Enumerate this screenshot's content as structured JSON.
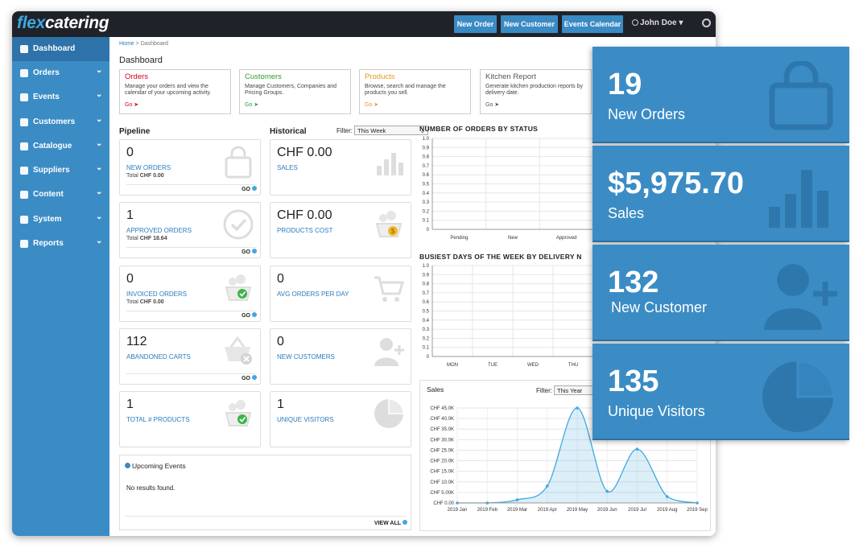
{
  "app": {
    "logo_prefix": "flex",
    "logo_suffix": "catering",
    "user": "John Doe ▾"
  },
  "topbar": {
    "buttons": [
      "New Order",
      "New Customer",
      "Events Calendar"
    ]
  },
  "sidebar": {
    "items": [
      {
        "label": "Dashboard",
        "icon": "bar-chart-icon"
      },
      {
        "label": "Orders",
        "icon": "edit-icon"
      },
      {
        "label": "Events",
        "icon": "calendar-icon"
      },
      {
        "label": "Customers",
        "icon": "users-icon"
      },
      {
        "label": "Catalogue",
        "icon": "book-icon"
      },
      {
        "label": "Suppliers",
        "icon": "truck-icon"
      },
      {
        "label": "Content",
        "icon": "pencil-icon"
      },
      {
        "label": "System",
        "icon": "gear-icon"
      },
      {
        "label": "Reports",
        "icon": "bar-chart-icon"
      }
    ]
  },
  "breadcrumb": {
    "home": "Home",
    "sep": ">",
    "current": "Dashboard"
  },
  "page_title": "Dashboard",
  "quick_cards": [
    {
      "title": "Orders",
      "text": "Manage your orders and view the calendar of your upcoming activity.",
      "go": "Go",
      "color": "#d0021b"
    },
    {
      "title": "Customers",
      "text": "Manage Customers, Companies and Pricing Groups.",
      "go": "Go",
      "color": "#2e9c2e"
    },
    {
      "title": "Products",
      "text": "Browse, search and manage the products you sell.",
      "go": "Go",
      "color": "#e09a1a"
    },
    {
      "title": "Kitchen Report",
      "text": "Generate kitchen production reports by delivery date.",
      "go": "Go",
      "color": "#555555"
    }
  ],
  "pipeline": {
    "heading": "Pipeline",
    "cards": [
      {
        "value": "0",
        "label": "NEW ORDERS",
        "total_prefix": "Total",
        "total": "CHF 0.00",
        "go": "GO",
        "icon": "shopping-bag-icon"
      },
      {
        "value": "1",
        "label": "APPROVED ORDERS",
        "total_prefix": "Total",
        "total": "CHF 18.64",
        "go": "GO",
        "icon": "check-circle-icon"
      },
      {
        "value": "0",
        "label": "INVOICED ORDERS",
        "total_prefix": "Total",
        "total": "CHF 0.00",
        "go": "GO",
        "icon": "food-basket-check-icon"
      },
      {
        "value": "112",
        "label": "ABANDONED CARTS",
        "total_prefix": "",
        "total": "",
        "go": "GO",
        "icon": "basket-x-icon"
      },
      {
        "value": "1",
        "label": "TOTAL # PRODUCTS",
        "total_prefix": "",
        "total": "",
        "go": "",
        "icon": "food-basket-check-icon"
      }
    ]
  },
  "historical": {
    "heading": "Historical",
    "filter_label": "Filter:",
    "filter_value": "This Week",
    "cards": [
      {
        "value": "CHF 0.00",
        "label": "SALES",
        "icon": "bar-chart-icon"
      },
      {
        "value": "CHF 0.00",
        "label": "PRODUCTS COST",
        "icon": "food-basket-coin-icon"
      },
      {
        "value": "0",
        "label": "AVG ORDERS PER DAY",
        "icon": "shopping-cart-icon"
      },
      {
        "value": "0",
        "label": "NEW CUSTOMERS",
        "icon": "add-user-icon"
      },
      {
        "value": "1",
        "label": "UNIQUE VISITORS",
        "icon": "pie-chart-icon"
      }
    ]
  },
  "upcoming_events": {
    "title": "Upcoming Events",
    "empty": "No results found.",
    "view_all": "VIEW ALL"
  },
  "sales_filter": {
    "label": "Filter:",
    "value": "This Year"
  },
  "chart_data": [
    {
      "type": "bar",
      "title": "NUMBER OF ORDERS BY STATUS",
      "categories": [
        "Pending",
        "New",
        "Approved"
      ],
      "values": [
        0,
        0,
        0
      ],
      "ylim": [
        0,
        1.0
      ],
      "yticks": [
        "0",
        "0.1",
        "0.2",
        "0.3",
        "0.4",
        "0.5",
        "0.6",
        "0.7",
        "0.8",
        "0.9",
        "1.0"
      ],
      "grid": true
    },
    {
      "type": "bar",
      "title": "BUSIEST DAYS OF THE WEEK BY DELIVERY N",
      "categories": [
        "MON",
        "TUE",
        "WED",
        "THU"
      ],
      "values": [
        0,
        0,
        0,
        0
      ],
      "ylim": [
        0,
        1.0
      ],
      "yticks": [
        "0",
        "0.1",
        "0.2",
        "0.3",
        "0.4",
        "0.5",
        "0.6",
        "0.7",
        "0.8",
        "0.9",
        "1.0"
      ],
      "grid": true
    },
    {
      "type": "area",
      "title": "Sales",
      "categories": [
        "2019 Jan",
        "2019 Feb",
        "2019 Mar",
        "2019 Apr",
        "2019 May",
        "2019 Jun",
        "2019 Jul",
        "2019 Aug",
        "2019 Sep"
      ],
      "values": [
        0,
        0,
        1500,
        8000,
        45000,
        5500,
        25500,
        3000,
        0
      ],
      "ylim": [
        0,
        45000
      ],
      "yticks": [
        "CHF 0.00",
        "CHF 5.00K",
        "CHF 10.0K",
        "CHF 15.0K",
        "CHF 20.0K",
        "CHF 25.0K",
        "CHF 30.0K",
        "CHF 35.0K",
        "CHF 40.0K",
        "CHF 45.0K"
      ],
      "grid": true,
      "color": "#3ea8e0"
    }
  ],
  "overlay": [
    {
      "value": "19",
      "label": "New Orders",
      "icon": "shopping-bag-icon"
    },
    {
      "value": "$5,975.70",
      "label": "Sales",
      "icon": "bar-chart-icon"
    },
    {
      "value": "132",
      "label": "New Customer",
      "icon": "add-user-icon"
    },
    {
      "value": "135",
      "label": "Unique Visitors",
      "icon": "pie-chart-icon"
    }
  ]
}
